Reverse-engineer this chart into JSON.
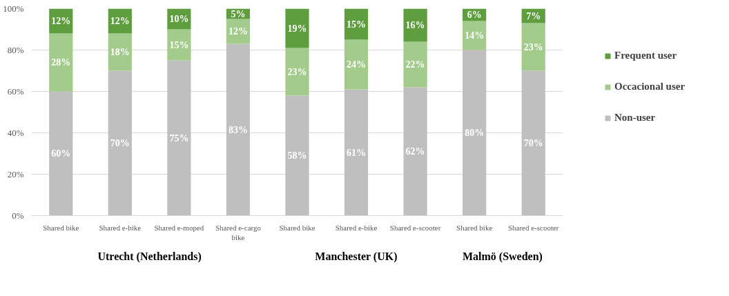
{
  "chart_data": {
    "type": "bar",
    "stacked": true,
    "categories": [
      "Shared bike",
      "Shared e-bike",
      "Shared e-moped",
      "Shared e-cargo bike",
      "Shared bike",
      "Shared e-bike",
      "Shared e-scooter",
      "Shared bike",
      "Shared e-scooter"
    ],
    "series": [
      {
        "name": "Non-user",
        "color": "#bfbfbf",
        "values": [
          60,
          70,
          75,
          83,
          58,
          61,
          62,
          80,
          70
        ],
        "value_labels": [
          "60%",
          "70%",
          "75%",
          "83%",
          "58%",
          "61%",
          "62%",
          "80%",
          "70%"
        ]
      },
      {
        "name": "Occacional user",
        "color": "#a3cb8b",
        "values": [
          28,
          18,
          15,
          12,
          23,
          24,
          22,
          14,
          23
        ],
        "value_labels": [
          "28%",
          "18%",
          "15%",
          "12%",
          "23%",
          "24%",
          "22%",
          "14%",
          "23%"
        ]
      },
      {
        "name": "Frequent user",
        "color": "#5e9e3e",
        "values": [
          12,
          12,
          10,
          5,
          19,
          15,
          16,
          6,
          7
        ],
        "value_labels": [
          "12%",
          "12%",
          "10%",
          "5%",
          "19%",
          "15%",
          "16%",
          "6%",
          "7%"
        ]
      }
    ],
    "ylim": [
      0,
      100
    ],
    "yticks": [
      {
        "value": 0,
        "label": "0%"
      },
      {
        "value": 20,
        "label": "20%"
      },
      {
        "value": 40,
        "label": "40%"
      },
      {
        "value": 60,
        "label": "60%"
      },
      {
        "value": 80,
        "label": "80%"
      },
      {
        "value": 100,
        "label": "100%"
      }
    ],
    "grid": "y",
    "legend": "right",
    "annotations": [
      "Utrecht (Netherlands)",
      "Manchester (UK)",
      "Malmö  (Sweden)"
    ]
  }
}
